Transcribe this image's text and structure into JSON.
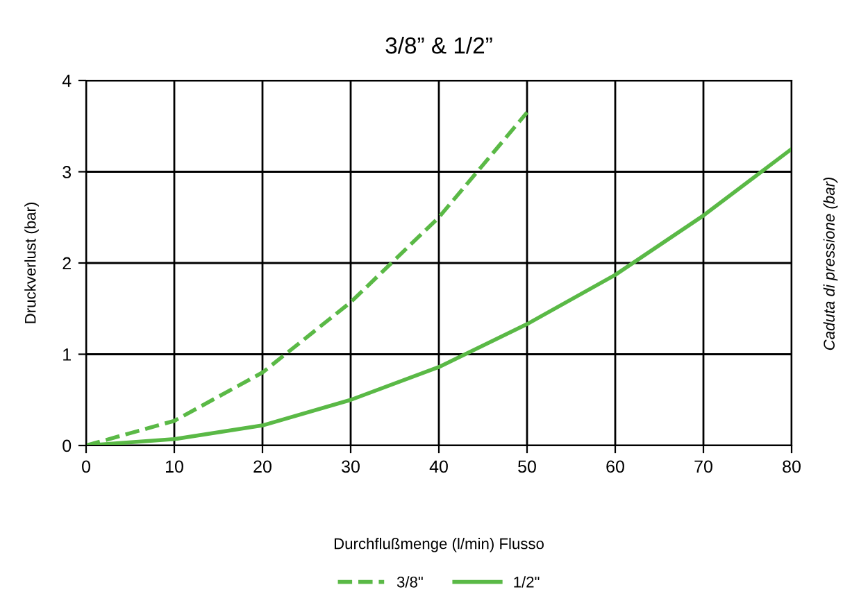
{
  "chart_data": {
    "type": "line",
    "title": "3/8” & 1/2”",
    "xlabel": "Durchflußmenge (l/min) Flusso",
    "ylabel": "Druckverlust (bar)",
    "y2label": "Caduta di pressione (bar)",
    "x": [
      0,
      10,
      20,
      30,
      40,
      50,
      60,
      70,
      80
    ],
    "series": [
      {
        "name": "3/8\"",
        "color": "#5ab946",
        "line_style": "dashed",
        "x": [
          0,
          10,
          20,
          30,
          40,
          50
        ],
        "values": [
          0,
          0.27,
          0.8,
          1.57,
          2.5,
          3.65
        ]
      },
      {
        "name": "1/2\"",
        "color": "#5ab946",
        "line_style": "solid",
        "values": [
          0,
          0.07,
          0.22,
          0.5,
          0.86,
          1.33,
          1.87,
          2.52,
          3.25
        ]
      }
    ],
    "xlim": [
      0,
      80
    ],
    "xticks": [
      0,
      10,
      20,
      30,
      40,
      50,
      60,
      70,
      80
    ],
    "ylim": [
      0,
      4
    ],
    "yticks": [
      0,
      1,
      2,
      3,
      4
    ],
    "grid": true,
    "legend": "bottom",
    "marker": "none"
  }
}
